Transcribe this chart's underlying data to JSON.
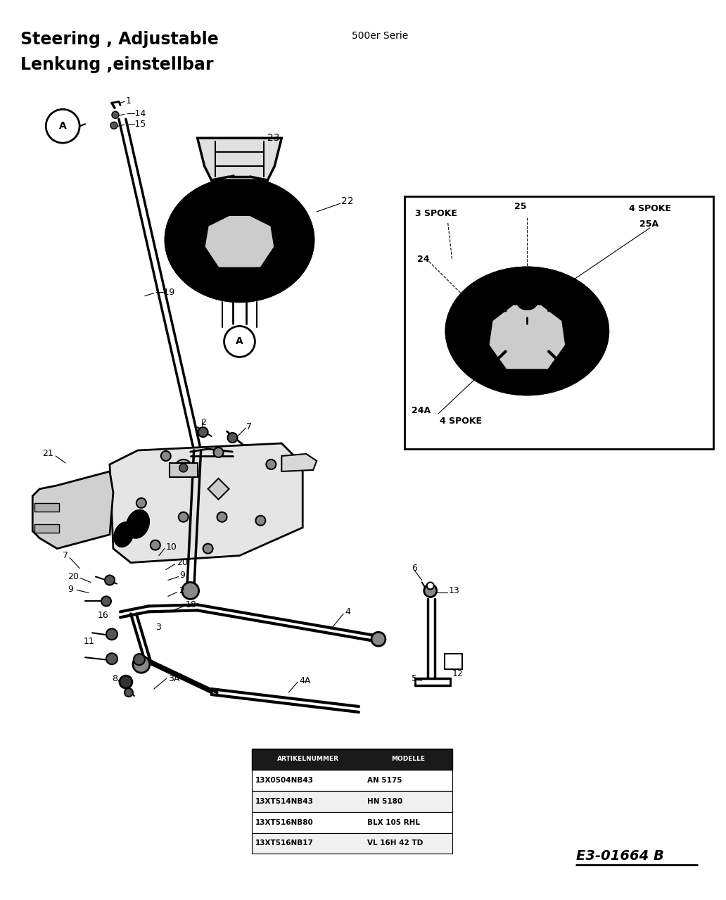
{
  "title_line1": "Steering , Adjustable",
  "title_line2": "Lenkung ,einstellbar",
  "series_label": "500er Serie",
  "diagram_ref": "E3-01664 B",
  "bg_color": "#ffffff",
  "table_header_bg": "#1a1a1a",
  "table_header_text": "#ffffff",
  "table_row1": [
    "13X0504NB43",
    "AN 5175"
  ],
  "table_row2": [
    "13XT514NB43",
    "HN 5180"
  ],
  "table_row3": [
    "13XT516NB80",
    "BLX 105 RHL"
  ],
  "table_row4": [
    "13XT516NB17",
    "VL 16H 42 TD"
  ],
  "table_header": [
    "ARTIKELNUMMER",
    "MODELLE"
  ],
  "title_fontsize": 17,
  "series_fontsize": 10,
  "ref_fontsize": 14
}
